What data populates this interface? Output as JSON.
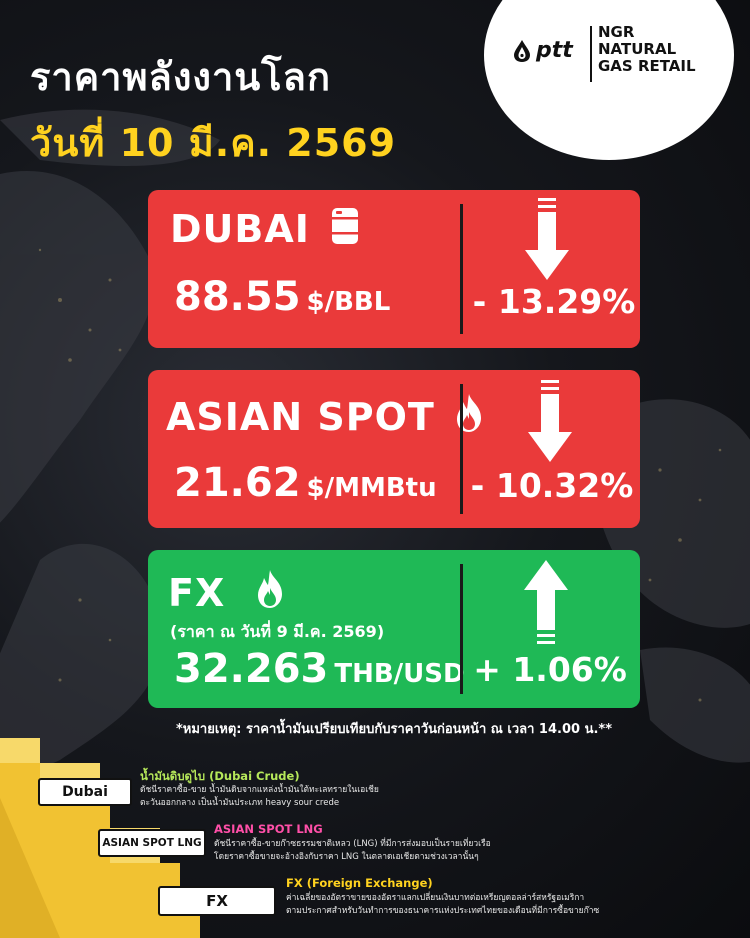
{
  "header": {
    "title": "ราคาพลังงานโลก",
    "date": "วันที่ 10 มี.ค. 2569"
  },
  "logo": {
    "brand": "ptt",
    "ngr_line1": "NGR",
    "ngr_line2": "NATURAL",
    "ngr_line3": "GAS RETAIL"
  },
  "colors": {
    "down": "#ea3a3a",
    "up": "#1fb956",
    "accent_yellow": "#ffd21f"
  },
  "cards": [
    {
      "name": "DUBAI",
      "icon": "oil-barrel-icon",
      "price": "88.55",
      "unit": "$/BBL",
      "change": "- 13.29%",
      "direction": "down"
    },
    {
      "name": "ASIAN SPOT",
      "icon": "flame-icon",
      "price": "21.62",
      "unit": "$/MMBtu",
      "change": "- 10.32%",
      "direction": "down"
    },
    {
      "name": "FX",
      "icon": "flame-icon",
      "subtitle": "(ราคา ณ วันที่  9 มี.ค. 2569)",
      "price": "32.263",
      "unit": "THB/USD",
      "change": "+ 1.06%",
      "direction": "up"
    }
  ],
  "note": "*หมายเหตุ: ราคาน้ำมันเปรียบเทียบกับราคาวันก่อนหน้า ณ เวลา 14.00 น.**",
  "glossary": [
    {
      "label": "Dubai",
      "title": "น้ำมันดิบดูไบ (Dubai Crude)",
      "title_color": "#b6e85a",
      "line1": "ดัชนีราคาซื้อ-ขาย น้ำมันดิบจากแหล่งน้ำมันใต้ทะเลทรายในเอเชีย",
      "line2": "ตะวันออกกลาง เป็นน้ำมันประเภท heavy sour crede"
    },
    {
      "label": "ASIAN SPOT LNG",
      "title": "ASIAN SPOT LNG",
      "title_color": "#ff4fa8",
      "line1": "ดัชนีราคาซื้อ-ขายก๊าซธรรมชาติเหลว (LNG) ที่มีการส่งมอบเป็นรายเที่ยวเรือ",
      "line2": "โดยราคาซื้อขายจะอ้างอิงกับราคา LNG ในตลาดเอเชียตามช่วงเวลานั้นๆ"
    },
    {
      "label": "FX",
      "title": "FX (Foreign Exchange)",
      "title_color": "#ffd21f",
      "line1": "ค่าเฉลี่ยของอัตราขายของอัตราแลกเปลี่ยนเงินบาทต่อเหรียญดอลล่าร์สหรัฐอเมริกา",
      "line2": "ตามประกาศสำหรับวันทำการของธนาคารแห่งประเทศไทยของเดือนที่มีการซื้อขายก๊าซ"
    }
  ]
}
